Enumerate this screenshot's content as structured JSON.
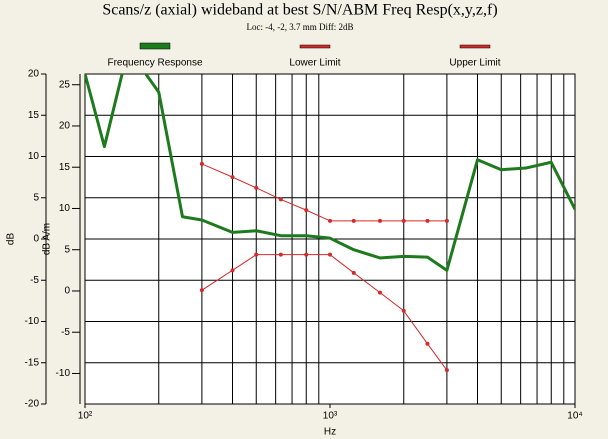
{
  "chart_data": {
    "type": "line",
    "title": "Scans/z (axial) wideband at best S/N/ABM Freq Resp(x,y,z,f)",
    "subtitle": "Loc: -4, -2, 3.7 mm Diff: 2dB",
    "xlabel": "Hz",
    "ylabel": "dB",
    "y2label": "dB A/m",
    "xscale": "log",
    "grid": true,
    "legend": "top",
    "x": [
      100,
      120,
      150,
      200,
      250,
      300,
      400,
      500,
      630,
      800,
      1000,
      1250,
      1600,
      2000,
      2500,
      3000,
      4000,
      5000,
      6300,
      8000,
      10000
    ],
    "xlim": [
      100,
      10000
    ],
    "xticks": [
      {
        "value": 100,
        "label": "10²"
      },
      {
        "value": 1000,
        "label": "10³"
      },
      {
        "value": 10000,
        "label": "10⁴"
      }
    ],
    "xminor": [
      200,
      300,
      400,
      500,
      600,
      700,
      800,
      900,
      2000,
      3000,
      4000,
      5000,
      6000,
      7000,
      8000,
      9000
    ],
    "ylim": [
      -20,
      20
    ],
    "yticks": [
      20,
      15,
      10,
      5,
      0,
      -5,
      -10,
      -15,
      -20
    ],
    "y2lim": [
      -13.7,
      26.3
    ],
    "y2ticks": [
      25,
      20,
      15,
      10,
      5,
      0,
      -5,
      -10
    ],
    "series": [
      {
        "name": "Frequency Response",
        "color": "#1d7a1d",
        "width": 3,
        "markers": false,
        "values": [
          20,
          11.2,
          23,
          17.8,
          2.7,
          2.3,
          0.8,
          1.0,
          0.4,
          0.4,
          0.1,
          -1.3,
          -2.3,
          -2.1,
          -2.2,
          -3.8,
          9.6,
          8.4,
          8.6,
          9.3,
          3.6
        ]
      },
      {
        "name": "Lower Limit",
        "color": "#d42a2a",
        "width": 1,
        "markers": true,
        "values": [
          null,
          null,
          null,
          null,
          null,
          -6.2,
          -3.8,
          -1.9,
          -1.9,
          -1.9,
          -1.9,
          -4.1,
          -6.5,
          -8.7,
          -12.7,
          -15.9,
          null,
          null,
          null,
          null,
          null
        ]
      },
      {
        "name": "Upper Limit",
        "color": "#d42a2a",
        "width": 1,
        "markers": true,
        "values": [
          null,
          null,
          null,
          null,
          null,
          9.1,
          7.5,
          6.2,
          4.8,
          3.5,
          2.2,
          2.2,
          2.2,
          2.2,
          2.2,
          2.2,
          null,
          null,
          null,
          null,
          null
        ]
      }
    ]
  }
}
